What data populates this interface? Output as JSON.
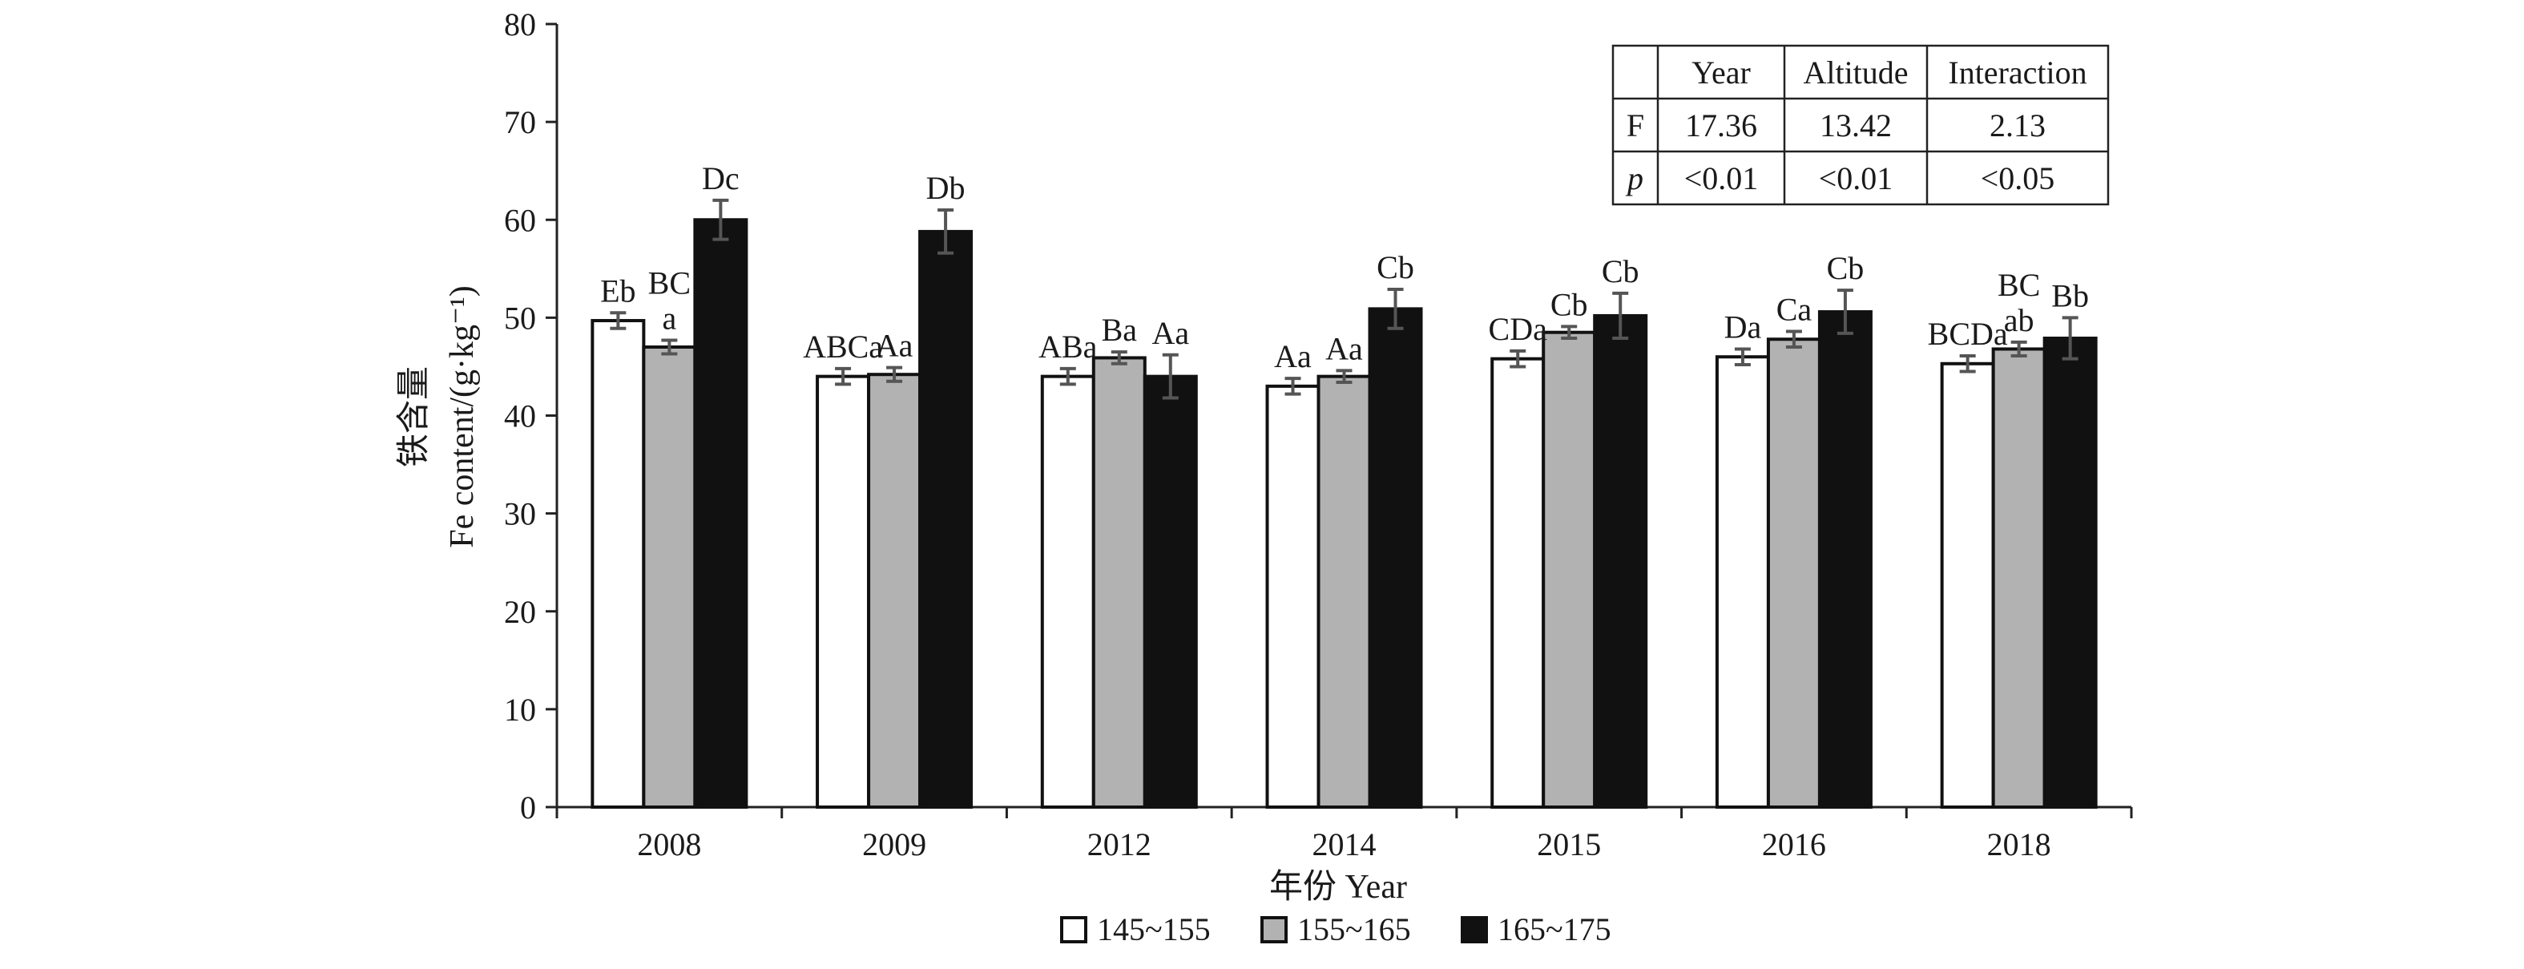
{
  "chart_data": {
    "type": "bar",
    "ylabel_cn": "铁含量",
    "ylabel_en": "Fe content/(g·kg⁻¹)",
    "xlabel": "年份 Year",
    "ylim": [
      0,
      80
    ],
    "yticks": [
      "0",
      "10",
      "20",
      "30",
      "40",
      "50",
      "60",
      "70",
      "80"
    ],
    "categories": [
      "2008",
      "2009",
      "2012",
      "2014",
      "2015",
      "2016",
      "2018"
    ],
    "series": [
      {
        "name": "145~155",
        "color": "#ffffff",
        "values": [
          49.7,
          44.0,
          44.0,
          43.0,
          45.8,
          46.0,
          45.3
        ],
        "errors": [
          0.8,
          0.8,
          0.8,
          0.8,
          0.8,
          0.8,
          0.8
        ],
        "labels": [
          "Eb",
          "ABCa",
          "ABa",
          "Aa",
          "CDa",
          "Da",
          "BCDa"
        ]
      },
      {
        "name": "155~165",
        "color": "#b2b2b2",
        "values": [
          47.0,
          44.2,
          45.9,
          44.0,
          48.5,
          47.8,
          46.8
        ],
        "errors": [
          0.7,
          0.7,
          0.6,
          0.6,
          0.6,
          0.8,
          0.7
        ],
        "labels": [
          "BC\na",
          "Aa",
          "Ba",
          "Aa",
          "Cb",
          "Ca",
          "BC\nab"
        ]
      },
      {
        "name": "165~175",
        "color": "#111111",
        "values": [
          60.0,
          58.8,
          44.0,
          50.9,
          50.2,
          50.6,
          47.9
        ],
        "errors": [
          2.0,
          2.2,
          2.2,
          2.0,
          2.3,
          2.2,
          2.1
        ],
        "labels": [
          "Dc",
          "Db",
          "Aa",
          "Cb",
          "Cb",
          "Cb",
          "Bb"
        ]
      }
    ],
    "legend_position": "bottom",
    "anova_table": {
      "header": [
        "",
        "Year",
        "Altitude",
        "Interaction"
      ],
      "rows": [
        [
          "F",
          "17.36",
          "13.42",
          "2.13"
        ],
        [
          "p",
          "<0.01",
          "<0.01",
          "<0.05"
        ]
      ]
    }
  }
}
